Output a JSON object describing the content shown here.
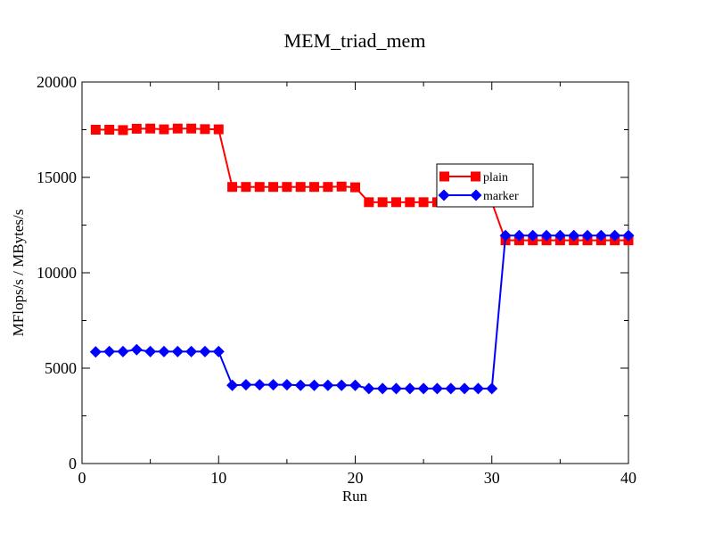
{
  "chart_data": {
    "type": "line",
    "title": "MEM_triad_mem",
    "xlabel": "Run",
    "ylabel": "MFlops/s / MBytes/s",
    "xlim": [
      0,
      40
    ],
    "ylim": [
      0,
      20000
    ],
    "x_ticks": [
      0,
      10,
      20,
      30,
      40
    ],
    "y_ticks": [
      0,
      5000,
      10000,
      15000,
      20000
    ],
    "grid": false,
    "legend_position": "upper-right-center",
    "x": [
      1,
      2,
      3,
      4,
      5,
      6,
      7,
      8,
      9,
      10,
      11,
      12,
      13,
      14,
      15,
      16,
      17,
      18,
      19,
      20,
      21,
      22,
      23,
      24,
      25,
      26,
      27,
      28,
      29,
      30,
      31,
      32,
      33,
      34,
      35,
      36,
      37,
      38,
      39,
      40
    ],
    "series": [
      {
        "name": "plain",
        "color": "#ff0000",
        "marker": "square",
        "values": [
          17500,
          17500,
          17480,
          17550,
          17560,
          17520,
          17560,
          17560,
          17530,
          17520,
          14500,
          14500,
          14500,
          14500,
          14500,
          14500,
          14500,
          14500,
          14520,
          14480,
          13700,
          13700,
          13700,
          13700,
          13700,
          13700,
          13700,
          13700,
          13700,
          13700,
          11700,
          11700,
          11700,
          11700,
          11700,
          11700,
          11700,
          11700,
          11700,
          11700
        ]
      },
      {
        "name": "marker",
        "color": "#0000ff",
        "marker": "diamond",
        "values": [
          5850,
          5870,
          5870,
          5970,
          5870,
          5870,
          5870,
          5870,
          5870,
          5870,
          4100,
          4130,
          4130,
          4130,
          4130,
          4100,
          4100,
          4100,
          4100,
          4100,
          3930,
          3930,
          3930,
          3930,
          3930,
          3930,
          3930,
          3930,
          3930,
          3930,
          11950,
          11950,
          11950,
          11950,
          11950,
          11950,
          11950,
          11950,
          11950,
          11950
        ]
      }
    ]
  }
}
